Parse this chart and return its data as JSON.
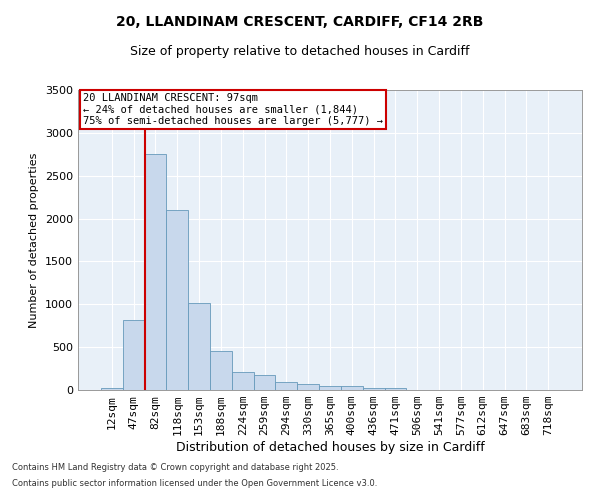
{
  "title_line1": "20, LLANDINAM CRESCENT, CARDIFF, CF14 2RB",
  "title_line2": "Size of property relative to detached houses in Cardiff",
  "xlabel": "Distribution of detached houses by size in Cardiff",
  "ylabel": "Number of detached properties",
  "bar_color": "#c8d8ec",
  "bar_edge_color": "#6699bb",
  "background_color": "#e8f0f8",
  "categories": [
    "12sqm",
    "47sqm",
    "82sqm",
    "118sqm",
    "153sqm",
    "188sqm",
    "224sqm",
    "259sqm",
    "294sqm",
    "330sqm",
    "365sqm",
    "400sqm",
    "436sqm",
    "471sqm",
    "506sqm",
    "541sqm",
    "577sqm",
    "612sqm",
    "647sqm",
    "683sqm",
    "718sqm"
  ],
  "values": [
    18,
    820,
    2750,
    2100,
    1020,
    450,
    210,
    170,
    95,
    65,
    50,
    50,
    20,
    20,
    0,
    0,
    0,
    0,
    0,
    0,
    0
  ],
  "ylim": [
    0,
    3500
  ],
  "yticks": [
    0,
    500,
    1000,
    1500,
    2000,
    2500,
    3000,
    3500
  ],
  "property_line_color": "#cc0000",
  "annotation_text": "20 LLANDINAM CRESCENT: 97sqm\n← 24% of detached houses are smaller (1,844)\n75% of semi-detached houses are larger (5,777) →",
  "footnote_line1": "Contains HM Land Registry data © Crown copyright and database right 2025.",
  "footnote_line2": "Contains public sector information licensed under the Open Government Licence v3.0."
}
